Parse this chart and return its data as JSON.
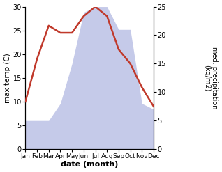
{
  "months": [
    "Jan",
    "Feb",
    "Mar",
    "Apr",
    "May",
    "Jun",
    "Jul",
    "Aug",
    "Sep",
    "Oct",
    "Nov",
    "Dec"
  ],
  "temperature": [
    10,
    19,
    26,
    24.5,
    24.5,
    28,
    30,
    28,
    21,
    18,
    13,
    9
  ],
  "precipitation": [
    5,
    5,
    5,
    8,
    15,
    24,
    25,
    25,
    21,
    21,
    8,
    7
  ],
  "temp_color": "#c0392b",
  "precip_color_fill": "#c5cae9",
  "ylabel_left": "max temp (C)",
  "ylabel_right": "med. precipitation\n(kg/m2)",
  "xlabel": "date (month)",
  "ylim_left": [
    0,
    30
  ],
  "ylim_right": [
    0,
    25
  ],
  "left_ticks": [
    0,
    5,
    10,
    15,
    20,
    25,
    30
  ],
  "right_ticks": [
    0,
    5,
    10,
    15,
    20,
    25
  ],
  "temp_linewidth": 1.8
}
